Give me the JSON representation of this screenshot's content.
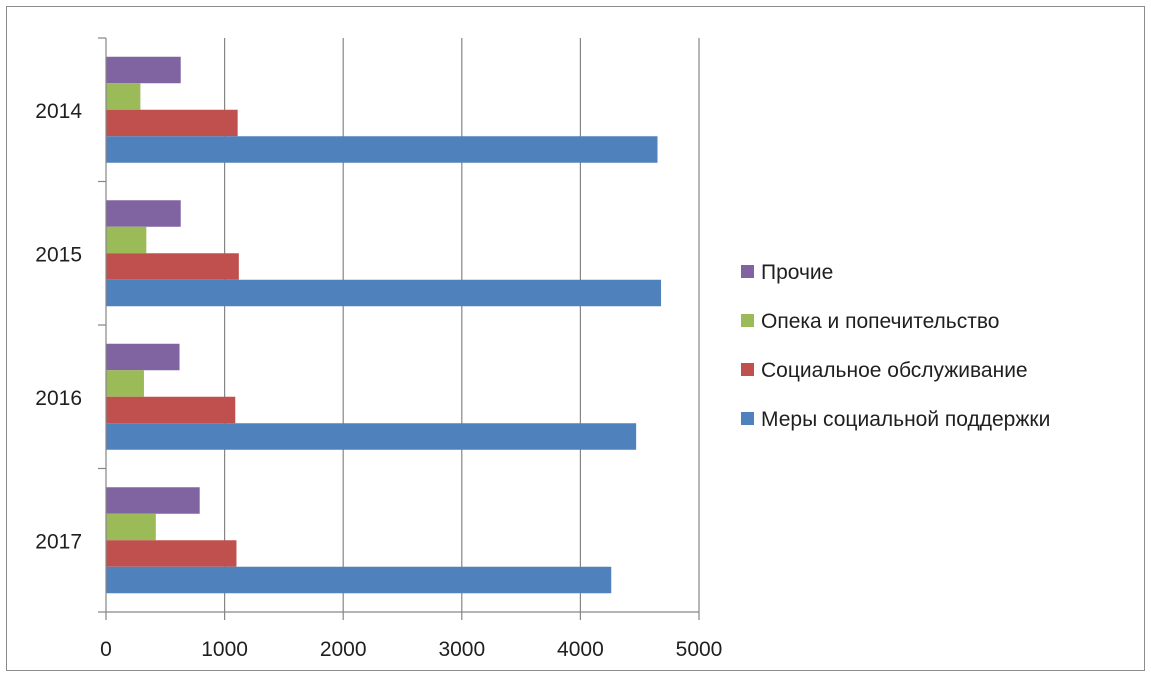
{
  "chart_data": {
    "type": "bar",
    "orientation": "horizontal",
    "categories": [
      "2014",
      "2015",
      "2016",
      "2017"
    ],
    "series": [
      {
        "name": "Меры социальной поддержки",
        "color": "#4f81bd",
        "values": [
          4650,
          4680,
          4470,
          4260
        ]
      },
      {
        "name": "Социальное обслуживание",
        "color": "#c0504d",
        "values": [
          1110,
          1120,
          1090,
          1100
        ]
      },
      {
        "name": "Опека и попечительство",
        "color": "#9bbb59",
        "values": [
          290,
          340,
          320,
          420
        ]
      },
      {
        "name": "Прочие",
        "color": "#8064a2",
        "values": [
          630,
          630,
          620,
          790
        ]
      }
    ],
    "xlim": [
      0,
      5000
    ],
    "x_ticks": [
      "0",
      "1000",
      "2000",
      "3000",
      "4000",
      "5000"
    ],
    "grid": "vertical",
    "legend_position": "right"
  }
}
